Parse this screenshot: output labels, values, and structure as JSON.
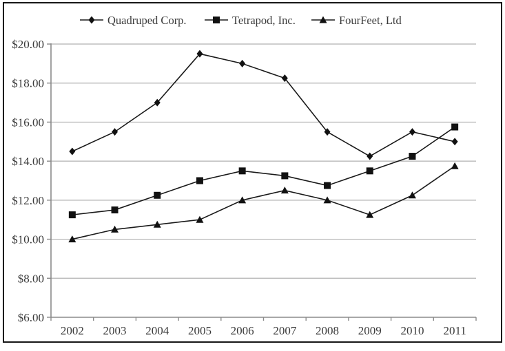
{
  "chart_data": {
    "type": "line",
    "title": "",
    "xlabel": "",
    "ylabel": "",
    "categories": [
      "2002",
      "2003",
      "2004",
      "2005",
      "2006",
      "2007",
      "2008",
      "2009",
      "2010",
      "2011"
    ],
    "series": [
      {
        "name": "Quadruped Corp.",
        "marker": "diamond",
        "values": [
          14.5,
          15.5,
          17.0,
          19.5,
          19.0,
          18.25,
          15.5,
          14.25,
          15.5,
          15.0
        ]
      },
      {
        "name": "Tetrapod, Inc.",
        "marker": "square",
        "values": [
          11.25,
          11.5,
          12.25,
          13.0,
          13.5,
          13.25,
          12.75,
          13.5,
          14.25,
          15.75
        ]
      },
      {
        "name": "FourFeet, Ltd",
        "marker": "triangle",
        "values": [
          10.0,
          10.5,
          10.75,
          11.0,
          12.0,
          12.5,
          12.0,
          11.25,
          12.25,
          13.75
        ]
      }
    ],
    "ylim": [
      6,
      20
    ],
    "y_ticks": [
      6,
      8,
      10,
      12,
      14,
      16,
      18,
      20
    ],
    "y_tick_labels": [
      "$6.00",
      "$8.00",
      "$10.00",
      "$12.00",
      "$14.00",
      "$16.00",
      "$18.00",
      "$20.00"
    ],
    "grid": true,
    "legend_position": "top",
    "colors": {
      "line": "#1a1a1a",
      "marker": "#111111",
      "grid": "#b0b0b0",
      "axis": "#8a8a8a",
      "text": "#3a3a3a",
      "border": "#161616",
      "background": "#ffffff"
    }
  }
}
